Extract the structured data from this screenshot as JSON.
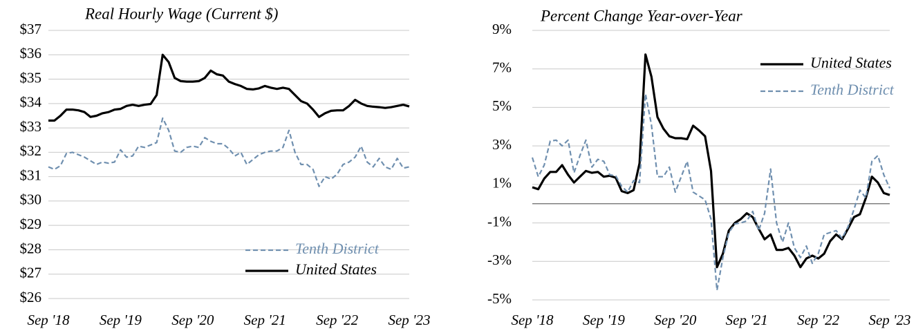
{
  "chart_data": [
    {
      "type": "line",
      "title": "Real Hourly Wage  (Current $)",
      "categories": [
        "Sep '18",
        null,
        null,
        null,
        null,
        null,
        null,
        null,
        null,
        null,
        null,
        null,
        "Sep '19",
        null,
        null,
        null,
        null,
        null,
        null,
        null,
        null,
        null,
        null,
        null,
        "Sep '20",
        null,
        null,
        null,
        null,
        null,
        null,
        null,
        null,
        null,
        null,
        null,
        "Sep '21",
        null,
        null,
        null,
        null,
        null,
        null,
        null,
        null,
        null,
        null,
        null,
        "Sep '22",
        null,
        null,
        null,
        null,
        null,
        null,
        null,
        null,
        null,
        null,
        null,
        "Sep '23"
      ],
      "series": [
        {
          "name": "Tenth District",
          "color": "#6f8faf",
          "line_style": "dashed",
          "values": [
            31.4,
            31.3,
            31.45,
            31.95,
            32.0,
            31.9,
            31.8,
            31.65,
            31.5,
            31.6,
            31.55,
            31.6,
            32.1,
            31.8,
            31.85,
            32.25,
            32.2,
            32.3,
            32.4,
            33.4,
            32.9,
            32.05,
            32.0,
            32.2,
            32.25,
            32.2,
            32.6,
            32.45,
            32.35,
            32.35,
            32.15,
            31.85,
            32.0,
            31.5,
            31.7,
            31.9,
            32.0,
            32.05,
            32.05,
            32.2,
            32.9,
            32.0,
            31.5,
            31.5,
            31.3,
            30.6,
            31.0,
            30.9,
            31.1,
            31.5,
            31.6,
            31.8,
            32.25,
            31.6,
            31.4,
            31.75,
            31.4,
            31.3,
            31.75,
            31.35,
            31.4
          ]
        },
        {
          "name": "United States",
          "color": "#000000",
          "line_style": "solid",
          "values": [
            33.3,
            33.3,
            33.5,
            33.75,
            33.75,
            33.72,
            33.65,
            33.45,
            33.5,
            33.6,
            33.65,
            33.75,
            33.78,
            33.9,
            33.95,
            33.9,
            33.95,
            33.98,
            34.35,
            36.0,
            35.7,
            35.05,
            34.92,
            34.9,
            34.9,
            34.92,
            35.05,
            35.35,
            35.2,
            35.15,
            34.9,
            34.8,
            34.72,
            34.6,
            34.58,
            34.62,
            34.72,
            34.65,
            34.6,
            34.65,
            34.6,
            34.35,
            34.1,
            34.0,
            33.75,
            33.45,
            33.6,
            33.7,
            33.72,
            33.72,
            33.9,
            34.15,
            34.0,
            33.9,
            33.87,
            33.85,
            33.82,
            33.85,
            33.9,
            33.95,
            33.88
          ]
        }
      ],
      "ylim": [
        26,
        37
      ],
      "yticks": [
        {
          "value": 26,
          "label": "$26"
        },
        {
          "value": 27,
          "label": "$27"
        },
        {
          "value": 28,
          "label": "$28"
        },
        {
          "value": 29,
          "label": "$29"
        },
        {
          "value": 30,
          "label": "$30"
        },
        {
          "value": 31,
          "label": "$31"
        },
        {
          "value": 32,
          "label": "$32"
        },
        {
          "value": 33,
          "label": "$33"
        },
        {
          "value": 34,
          "label": "$34"
        },
        {
          "value": 35,
          "label": "$35"
        },
        {
          "value": 36,
          "label": "$36"
        },
        {
          "value": 37,
          "label": "$37"
        }
      ],
      "grid": true,
      "legend": "lower right"
    },
    {
      "type": "line",
      "title": "Percent Change Year-over-Year",
      "categories": [
        "Sep '18",
        null,
        null,
        null,
        null,
        null,
        null,
        null,
        null,
        null,
        null,
        null,
        "Sep '19",
        null,
        null,
        null,
        null,
        null,
        null,
        null,
        null,
        null,
        null,
        null,
        "Sep '20",
        null,
        null,
        null,
        null,
        null,
        null,
        null,
        null,
        null,
        null,
        null,
        "Sep '21",
        null,
        null,
        null,
        null,
        null,
        null,
        null,
        null,
        null,
        null,
        null,
        "Sep '22",
        null,
        null,
        null,
        null,
        null,
        null,
        null,
        null,
        null,
        null,
        null,
        "Sep '23"
      ],
      "series": [
        {
          "name": "United States",
          "color": "#000000",
          "line_style": "solid",
          "values": [
            0.85,
            0.75,
            1.3,
            1.65,
            1.65,
            2.0,
            1.5,
            1.1,
            1.4,
            1.7,
            1.6,
            1.65,
            1.4,
            1.45,
            1.35,
            0.65,
            0.55,
            0.7,
            2.1,
            7.75,
            6.6,
            4.5,
            3.9,
            3.5,
            3.4,
            3.4,
            3.35,
            4.05,
            3.8,
            3.5,
            1.7,
            -3.3,
            -2.6,
            -1.4,
            -1.0,
            -0.8,
            -0.5,
            -0.7,
            -1.3,
            -1.85,
            -1.6,
            -2.4,
            -2.4,
            -2.3,
            -2.7,
            -3.3,
            -2.85,
            -2.7,
            -2.85,
            -2.6,
            -1.95,
            -1.6,
            -1.85,
            -1.3,
            -0.7,
            -0.55,
            0.3,
            1.4,
            1.1,
            0.55,
            0.45
          ]
        },
        {
          "name": "Tenth District",
          "color": "#6f8faf",
          "line_style": "dashed",
          "values": [
            2.4,
            1.4,
            2.0,
            3.25,
            3.3,
            3.0,
            3.3,
            1.6,
            2.5,
            3.3,
            1.9,
            2.3,
            2.2,
            1.5,
            1.45,
            0.9,
            0.6,
            1.2,
            1.1,
            5.7,
            4.1,
            1.4,
            1.4,
            1.9,
            0.6,
            1.4,
            2.2,
            0.6,
            0.4,
            0.2,
            -0.8,
            -4.5,
            -2.8,
            -1.5,
            -1.05,
            -1.0,
            -0.9,
            -0.4,
            -1.4,
            -0.5,
            1.8,
            -1.0,
            -2.0,
            -1.0,
            -2.3,
            -2.8,
            -2.2,
            -3.1,
            -2.6,
            -1.6,
            -1.5,
            -1.4,
            -1.8,
            -1.2,
            -0.3,
            0.7,
            0.3,
            2.2,
            2.5,
            1.5,
            0.8
          ]
        }
      ],
      "ylim": [
        -5,
        9
      ],
      "yticks": [
        {
          "value": -5,
          "label": "-5%"
        },
        {
          "value": -3,
          "label": "-3%"
        },
        {
          "value": -1,
          "label": "-1%"
        },
        {
          "value": 1,
          "label": "1%"
        },
        {
          "value": 3,
          "label": "3%"
        },
        {
          "value": 5,
          "label": "5%"
        },
        {
          "value": 7,
          "label": "7%"
        },
        {
          "value": 9,
          "label": "9%"
        }
      ],
      "grid": true,
      "zeroline": true,
      "legend": "upper right"
    }
  ]
}
